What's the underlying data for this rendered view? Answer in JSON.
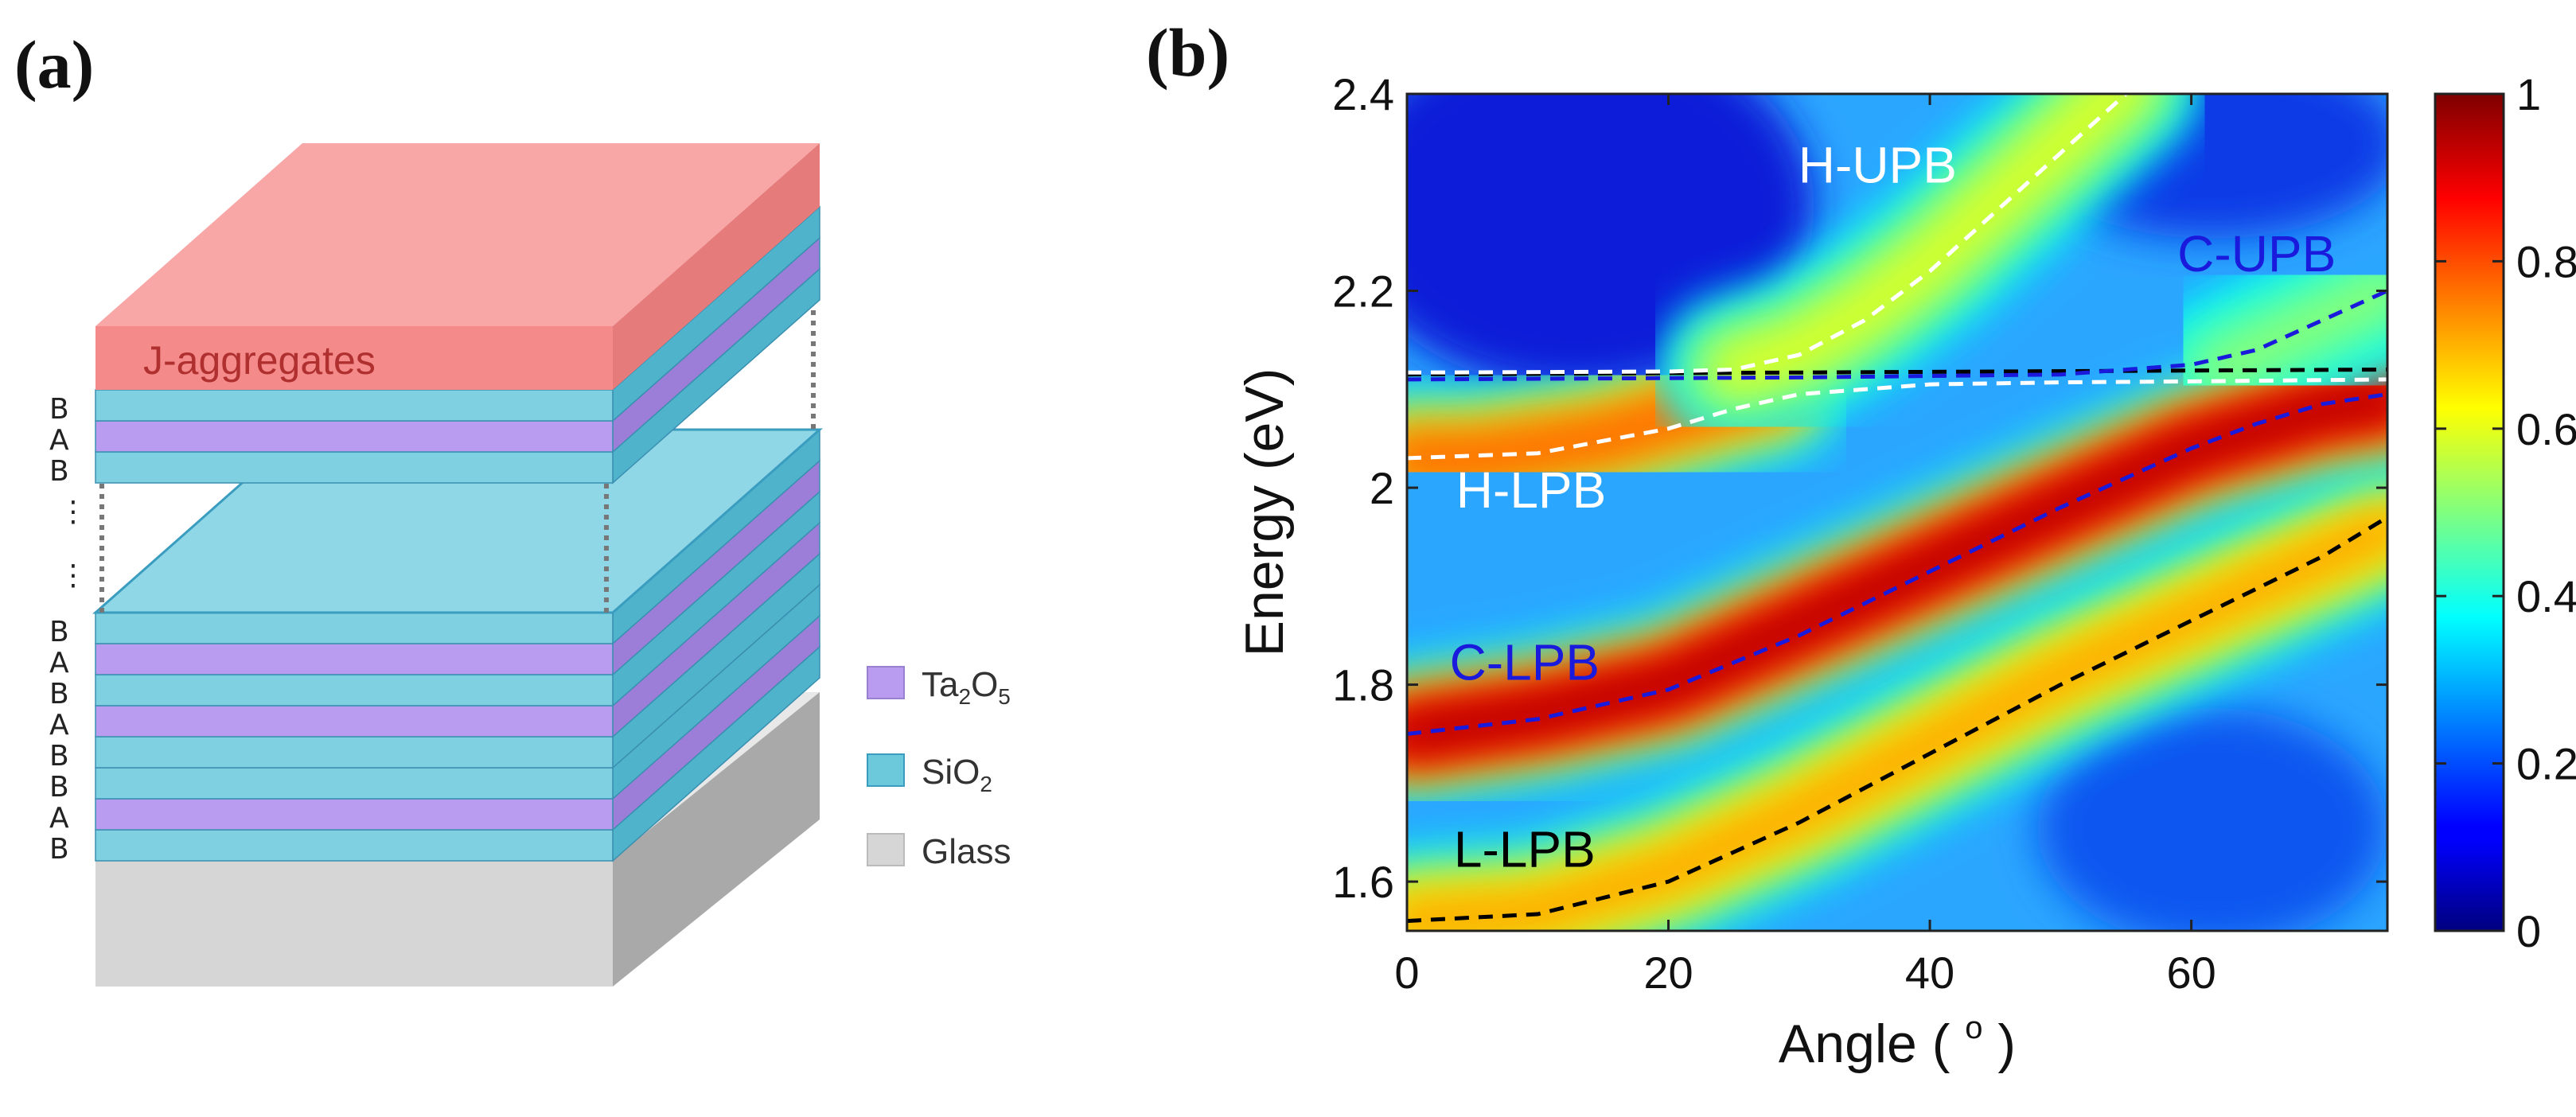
{
  "panel_a": {
    "label": "(a)",
    "top_layer_label": "J-aggregates",
    "upper_stack_letters": [
      "B",
      "A",
      "B"
    ],
    "lower_stack_letters": [
      "B",
      "A",
      "B",
      "A",
      "B",
      "B",
      "A",
      "B"
    ],
    "ellipsis": "⋮",
    "legend": [
      {
        "name": "Ta2O5",
        "base": "Ta",
        "sub1": "2",
        "mid": "O",
        "sub2": "5",
        "color": "#b99cf0"
      },
      {
        "name": "SiO2",
        "base": "SiO",
        "sub1": "2",
        "mid": "",
        "sub2": "",
        "color": "#6cc9dc"
      },
      {
        "name": "Glass",
        "base": "Glass",
        "sub1": "",
        "mid": "",
        "sub2": "",
        "color": "#d6d6d6"
      }
    ],
    "colors": {
      "j_aggregates": "#f48a8a",
      "sio2": "#7fd0e0",
      "ta2o5": "#b99cf0",
      "glass": "#d8d8d8"
    }
  },
  "panel_b": {
    "label": "(b)"
  },
  "chart_data": {
    "type": "heatmap",
    "title": "",
    "xlabel": "Angle ( ",
    "xlabel_sup": "o",
    "xlabel_end": " )",
    "ylabel": "Energy (eV)",
    "xlim": [
      0,
      75
    ],
    "ylim": [
      1.55,
      2.4
    ],
    "x_ticks": [
      0,
      20,
      40,
      60
    ],
    "x_tick_labels": [
      "0",
      "20",
      "40",
      "60"
    ],
    "y_ticks": [
      1.6,
      1.8,
      2.0,
      2.2,
      2.4
    ],
    "y_tick_labels": [
      "1.6",
      "1.8",
      "2",
      "2.2",
      "2.4"
    ],
    "colorbar": {
      "range": [
        0,
        1
      ],
      "ticks": [
        0,
        0.2,
        0.4,
        0.6,
        0.8,
        1
      ],
      "tick_labels": [
        "0",
        "0.2",
        "0.4",
        "0.6",
        "0.8",
        "1"
      ],
      "colormap": "jet"
    },
    "background_intensity": 0.22,
    "bands": [
      {
        "name": "L-LPB",
        "peak": 0.72,
        "points": [
          [
            0,
            1.56
          ],
          [
            10,
            1.57
          ],
          [
            20,
            1.61
          ],
          [
            30,
            1.67
          ],
          [
            40,
            1.74
          ],
          [
            50,
            1.81
          ],
          [
            60,
            1.87
          ],
          [
            70,
            1.93
          ],
          [
            75,
            1.96
          ]
        ]
      },
      {
        "name": "C-LPB",
        "peak": 0.95,
        "points": [
          [
            0,
            1.75
          ],
          [
            10,
            1.77
          ],
          [
            20,
            1.8
          ],
          [
            30,
            1.86
          ],
          [
            40,
            1.92
          ],
          [
            50,
            1.98
          ],
          [
            55,
            2.01
          ],
          [
            60,
            2.04
          ],
          [
            65,
            2.06
          ],
          [
            70,
            2.08
          ],
          [
            75,
            2.09
          ]
        ]
      },
      {
        "name": "H-LPB",
        "peak": 0.78,
        "points": [
          [
            0,
            2.03
          ],
          [
            5,
            2.03
          ],
          [
            10,
            2.04
          ],
          [
            15,
            2.05
          ],
          [
            20,
            2.07
          ],
          [
            25,
            2.09
          ],
          [
            28,
            2.1
          ]
        ]
      },
      {
        "name": "H-UPB",
        "peak": 0.6,
        "points": [
          [
            25,
            2.12
          ],
          [
            30,
            2.14
          ],
          [
            35,
            2.18
          ],
          [
            40,
            2.23
          ],
          [
            45,
            2.29
          ],
          [
            50,
            2.35
          ],
          [
            55,
            2.41
          ]
        ]
      },
      {
        "name": "C-UPB",
        "peak": 0.52,
        "points": [
          [
            62,
            2.12
          ],
          [
            65,
            2.14
          ],
          [
            70,
            2.17
          ],
          [
            75,
            2.2
          ]
        ]
      }
    ],
    "dispersion_curves": [
      {
        "name": "exciton",
        "color": "#000000",
        "points": [
          [
            0,
            2.115
          ],
          [
            75,
            2.12
          ]
        ]
      },
      {
        "name": "H-LPB fit",
        "color": "#ffffff",
        "points": [
          [
            0,
            2.03
          ],
          [
            10,
            2.035
          ],
          [
            20,
            2.06
          ],
          [
            25,
            2.08
          ],
          [
            30,
            2.095
          ],
          [
            40,
            2.105
          ],
          [
            50,
            2.107
          ],
          [
            60,
            2.108
          ],
          [
            75,
            2.11
          ]
        ]
      },
      {
        "name": "H-UPB fit",
        "color": "#ffffff",
        "points": [
          [
            0,
            2.117
          ],
          [
            20,
            2.118
          ],
          [
            25,
            2.12
          ],
          [
            30,
            2.135
          ],
          [
            35,
            2.17
          ],
          [
            40,
            2.22
          ],
          [
            45,
            2.28
          ],
          [
            50,
            2.34
          ],
          [
            55,
            2.4
          ]
        ]
      },
      {
        "name": "C-LPB fit",
        "color": "#1a1adc",
        "points": [
          [
            0,
            1.75
          ],
          [
            10,
            1.765
          ],
          [
            20,
            1.795
          ],
          [
            30,
            1.85
          ],
          [
            40,
            1.915
          ],
          [
            50,
            1.98
          ],
          [
            55,
            2.01
          ],
          [
            60,
            2.04
          ],
          [
            65,
            2.065
          ],
          [
            70,
            2.085
          ],
          [
            75,
            2.095
          ]
        ]
      },
      {
        "name": "C-UPB fit",
        "color": "#1a1adc",
        "points": [
          [
            0,
            2.11
          ],
          [
            30,
            2.112
          ],
          [
            50,
            2.115
          ],
          [
            60,
            2.125
          ],
          [
            65,
            2.14
          ],
          [
            70,
            2.17
          ],
          [
            75,
            2.2
          ]
        ]
      },
      {
        "name": "L-LPB fit",
        "color": "#000000",
        "points": [
          [
            0,
            1.56
          ],
          [
            10,
            1.567
          ],
          [
            20,
            1.6
          ],
          [
            30,
            1.66
          ],
          [
            40,
            1.73
          ],
          [
            50,
            1.8
          ],
          [
            60,
            1.865
          ],
          [
            70,
            1.93
          ],
          [
            75,
            1.97
          ]
        ]
      }
    ],
    "annotations": [
      {
        "text": "H-UPB",
        "x": 36,
        "y": 2.31,
        "color": "#ffffff"
      },
      {
        "text": "C-UPB",
        "x": 65,
        "y": 2.22,
        "color": "#1a1adc"
      },
      {
        "text": "H-LPB",
        "x": 9.5,
        "y": 1.98,
        "color": "#ffffff"
      },
      {
        "text": "C-LPB",
        "x": 9,
        "y": 1.805,
        "color": "#1a1adc"
      },
      {
        "text": "L-LPB",
        "x": 9,
        "y": 1.615,
        "color": "#000000"
      }
    ]
  }
}
